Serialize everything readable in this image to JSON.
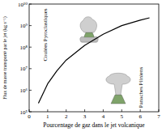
{
  "chart_data": {
    "type": "line",
    "x_label": "Pourcentage de gaz dans le jet volcanique",
    "y_label": "Flux de masse transporté par le jet (kg s⁻¹)",
    "annotations": [
      "Coulées Pyroclastiques",
      "Panaches Pliniens"
    ],
    "x": [
      0.5,
      1,
      1.5,
      2,
      3,
      4,
      5,
      6,
      6.5
    ],
    "series": [
      {
        "name": null,
        "color": "#000000",
        "values": [
          250000,
          2000000,
          8000000,
          25000000,
          120000000,
          400000000,
          1000000000,
          1800000000,
          2300000000
        ]
      }
    ],
    "xlim": [
      0,
      7
    ],
    "xticks": [
      0,
      1,
      2,
      3,
      4,
      5,
      6,
      7
    ],
    "ylim": [
      100000,
      10000000000
    ],
    "yticks": [
      {
        "value": 100000,
        "label": "10⁵"
      },
      {
        "value": 1000000,
        "label": "10⁶"
      },
      {
        "value": 10000000,
        "label": "10⁷"
      },
      {
        "value": 100000000,
        "label": "10⁸"
      },
      {
        "value": 1000000000,
        "label": "10⁹"
      },
      {
        "value": 10000000000,
        "label": "10¹⁰"
      }
    ],
    "log": "y"
  }
}
